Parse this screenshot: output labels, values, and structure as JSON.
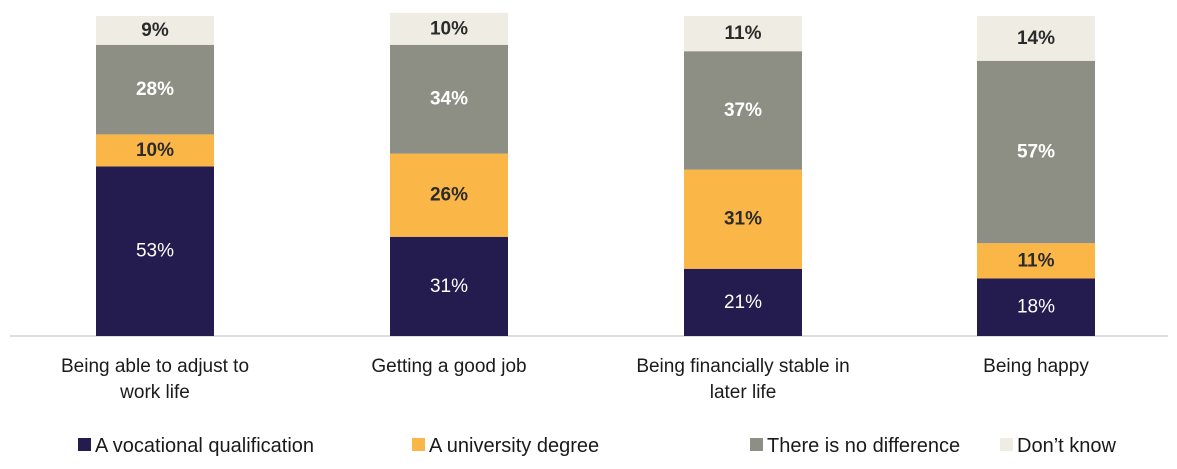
{
  "chart_data": {
    "type": "bar",
    "stacked": true,
    "percent_stacked": true,
    "categories": [
      [
        "Being able to adjust to",
        "work life"
      ],
      [
        "Getting a good job"
      ],
      [
        "Being financially stable in",
        "later life"
      ],
      [
        "Being happy"
      ]
    ],
    "series": [
      {
        "name": "A vocational qualification",
        "values": [
          53,
          31,
          21,
          18
        ],
        "labels": [
          "53%",
          "31%",
          "21%",
          "18%"
        ],
        "color": "#241c4f",
        "label_color": "#ffffff",
        "label_bold": false
      },
      {
        "name": "A university degree",
        "values": [
          10,
          26,
          31,
          11
        ],
        "labels": [
          "10%",
          "26%",
          "31%",
          "11%"
        ],
        "color": "#fbb648",
        "label_color": "#2b2b2b",
        "label_bold": true
      },
      {
        "name": "There is no difference",
        "values": [
          28,
          34,
          37,
          57
        ],
        "labels": [
          "28%",
          "34%",
          "37%",
          "57%"
        ],
        "color": "#8e8f84",
        "label_color": "#ffffff",
        "label_bold": true
      },
      {
        "name": "Don’t know",
        "values": [
          9,
          10,
          11,
          14
        ],
        "labels": [
          "9%",
          "10%",
          "11%",
          "14%"
        ],
        "color": "#efede3",
        "label_color": "#2b2b2b",
        "label_bold": true
      }
    ],
    "ylim": [
      0,
      100
    ],
    "grid": false,
    "legend": "bottom",
    "axis_color": "#bdbdbd"
  }
}
